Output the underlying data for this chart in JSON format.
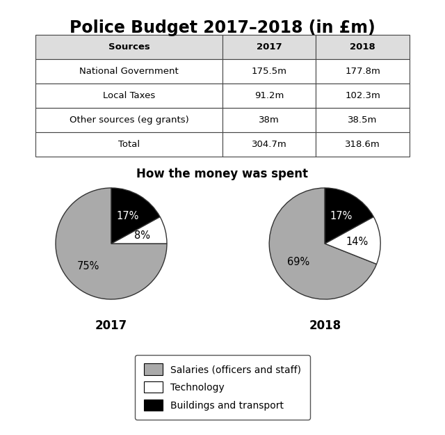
{
  "title": "Police Budget 2017–2018 (in £m)",
  "title_fontsize": 17,
  "table": {
    "col_headers": [
      "Sources",
      "2017",
      "2018"
    ],
    "rows": [
      [
        "National Government",
        "175.5m",
        "177.8m"
      ],
      [
        "Local Taxes",
        "91.2m",
        "102.3m"
      ],
      [
        "Other sources (eg grants)",
        "38m",
        "38.5m"
      ],
      [
        "Total",
        "304.7m",
        "318.6m"
      ]
    ]
  },
  "pie_title": "How the money was spent",
  "pie_title_fontsize": 12,
  "pie_2017_values": [
    75,
    8,
    17
  ],
  "pie_2017_labels": [
    "75%",
    "8%",
    "17%"
  ],
  "pie_2018_values": [
    69,
    14,
    17
  ],
  "pie_2018_labels": [
    "69%",
    "14%",
    "17%"
  ],
  "pie_colors": [
    "#aaaaaa",
    "#ffffff",
    "#000000"
  ],
  "pie_startangle": 90,
  "pie_year_labels": [
    "2017",
    "2018"
  ],
  "pie_year_fontsize": 12,
  "legend_labels": [
    "Salaries (officers and staff)",
    "Technology",
    "Buildings and transport"
  ],
  "legend_colors": [
    "#aaaaaa",
    "#ffffff",
    "#000000"
  ],
  "background_color": "#ffffff"
}
